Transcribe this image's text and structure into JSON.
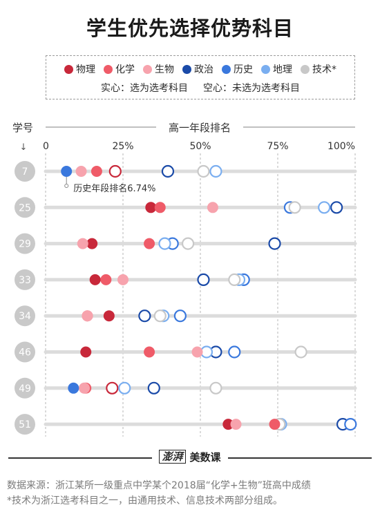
{
  "title": "学生优先选择优势科目",
  "legend": {
    "items": [
      {
        "key": "physics",
        "label": "物理",
        "color": "#c8283a"
      },
      {
        "key": "chemistry",
        "label": "化学",
        "color": "#ef5b68"
      },
      {
        "key": "biology",
        "label": "生物",
        "color": "#f7a3ad"
      },
      {
        "key": "politics",
        "label": "政治",
        "color": "#1a4aa8"
      },
      {
        "key": "history",
        "label": "历史",
        "color": "#3a78dd"
      },
      {
        "key": "geography",
        "label": "地理",
        "color": "#7aaef0"
      },
      {
        "key": "tech",
        "label": "技术*",
        "color": "#c8c8c8"
      }
    ],
    "filled_note": "实心：选为选考科目",
    "hollow_note": "空心：未选为选考科目"
  },
  "footer": {
    "logo_mark": "澎湃",
    "logo_text": "美数课",
    "source_line1": "数据来源：浙江某所一级重点中学某个2018届“化学+生物”班高中成绩",
    "source_line2": "*技术为浙江选考科目之一，由通用技术、信息技术两部分组成。"
  },
  "chart_data": {
    "type": "scatter",
    "title": "学生优先选择优势科目",
    "xlabel": "高一年段排名",
    "ylabel": "学号",
    "xlim": [
      0,
      100
    ],
    "x_ticks": [
      "0",
      "25%",
      "50%",
      "75%",
      "100%"
    ],
    "grid": "vertical dashed at 25% intervals",
    "legend_position": "top",
    "annotation": "历史年段排名6.74%",
    "students": [
      "7",
      "25",
      "29",
      "33",
      "34",
      "46",
      "49",
      "51"
    ],
    "series": [
      {
        "name": "物理",
        "color": "#c8283a",
        "points": [
          {
            "student": "7",
            "value": 22.5,
            "selected": false
          },
          {
            "student": "25",
            "value": 34,
            "selected": true
          },
          {
            "student": "29",
            "value": 15,
            "selected": true
          },
          {
            "student": "33",
            "value": 16,
            "selected": true
          },
          {
            "student": "34",
            "value": 20.5,
            "selected": true
          },
          {
            "student": "46",
            "value": 13,
            "selected": true
          },
          {
            "student": "49",
            "value": 21.5,
            "selected": false
          },
          {
            "student": "51",
            "value": 59,
            "selected": true
          }
        ]
      },
      {
        "name": "化学",
        "color": "#ef5b68",
        "points": [
          {
            "student": "7",
            "value": 16.5,
            "selected": true
          },
          {
            "student": "25",
            "value": 37,
            "selected": true
          },
          {
            "student": "29",
            "value": 33.5,
            "selected": true
          },
          {
            "student": "33",
            "value": 19.5,
            "selected": true
          },
          {
            "student": "34",
            "value": 13.5,
            "selected": true
          },
          {
            "student": "46",
            "value": 33.5,
            "selected": true
          },
          {
            "student": "49",
            "value": 13,
            "selected": true
          },
          {
            "student": "51",
            "value": 74,
            "selected": true
          }
        ]
      },
      {
        "name": "生物",
        "color": "#f7a3ad",
        "points": [
          {
            "student": "7",
            "value": 11.5,
            "selected": true
          },
          {
            "student": "25",
            "value": 54,
            "selected": true
          },
          {
            "student": "29",
            "value": 12,
            "selected": true
          },
          {
            "student": "33",
            "value": 25,
            "selected": true
          },
          {
            "student": "34",
            "value": 13.5,
            "selected": true
          },
          {
            "student": "46",
            "value": 49,
            "selected": true
          },
          {
            "student": "49",
            "value": 12.5,
            "selected": true
          },
          {
            "student": "51",
            "value": 61.5,
            "selected": true
          }
        ]
      },
      {
        "name": "政治",
        "color": "#1a4aa8",
        "points": [
          {
            "student": "7",
            "value": 39.5,
            "selected": false
          },
          {
            "student": "25",
            "value": 94,
            "selected": false
          },
          {
            "student": "29",
            "value": 74,
            "selected": false
          },
          {
            "student": "33",
            "value": 51,
            "selected": false
          },
          {
            "student": "34",
            "value": 32,
            "selected": false
          },
          {
            "student": "46",
            "value": 55,
            "selected": false
          },
          {
            "student": "49",
            "value": 35,
            "selected": false
          },
          {
            "student": "51",
            "value": 96,
            "selected": false
          }
        ]
      },
      {
        "name": "历史",
        "color": "#3a78dd",
        "points": [
          {
            "student": "7",
            "value": 6.74,
            "selected": true
          },
          {
            "student": "25",
            "value": 79,
            "selected": false
          },
          {
            "student": "29",
            "value": 41,
            "selected": false
          },
          {
            "student": "33",
            "value": 64,
            "selected": false
          },
          {
            "student": "34",
            "value": 43.5,
            "selected": false
          },
          {
            "student": "46",
            "value": 61,
            "selected": false
          },
          {
            "student": "49",
            "value": 9,
            "selected": true
          },
          {
            "student": "51",
            "value": 98.5,
            "selected": false
          }
        ]
      },
      {
        "name": "地理",
        "color": "#7aaef0",
        "points": [
          {
            "student": "7",
            "value": 55,
            "selected": false
          },
          {
            "student": "25",
            "value": 90,
            "selected": false
          },
          {
            "student": "29",
            "value": 38.5,
            "selected": false
          },
          {
            "student": "33",
            "value": 62.5,
            "selected": false
          },
          {
            "student": "34",
            "value": 38,
            "selected": false
          },
          {
            "student": "46",
            "value": 52,
            "selected": false
          },
          {
            "student": "49",
            "value": 25.5,
            "selected": false
          },
          {
            "student": "51",
            "value": 76,
            "selected": false
          }
        ]
      },
      {
        "name": "技术*",
        "color": "#c8c8c8",
        "points": [
          {
            "student": "7",
            "value": 51,
            "selected": false
          },
          {
            "student": "25",
            "value": 80.5,
            "selected": false
          },
          {
            "student": "29",
            "value": 46,
            "selected": false
          },
          {
            "student": "33",
            "value": 61,
            "selected": false
          },
          {
            "student": "34",
            "value": 37,
            "selected": false
          },
          {
            "student": "46",
            "value": 82.5,
            "selected": false
          },
          {
            "student": "49",
            "value": 55,
            "selected": false
          },
          {
            "student": "51",
            "value": 75.5,
            "selected": false
          }
        ]
      }
    ]
  }
}
